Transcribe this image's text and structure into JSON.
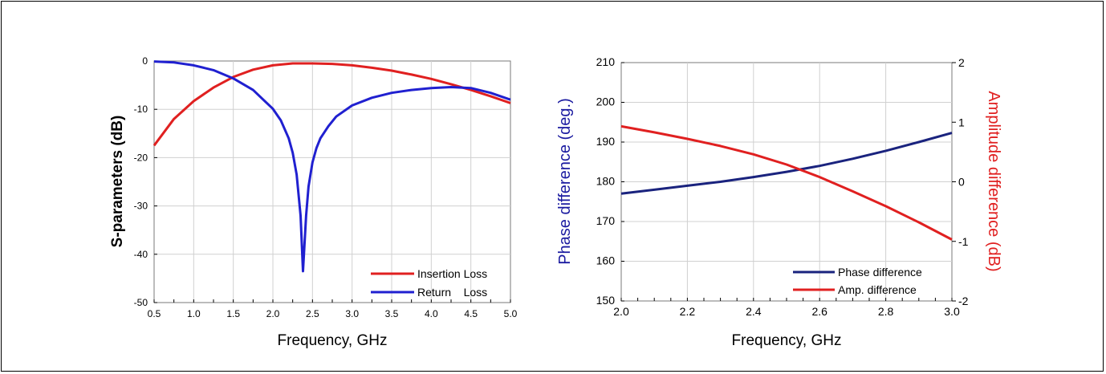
{
  "chart_data": [
    {
      "type": "line",
      "ylabel": "S-parameters (dB)",
      "xlabel": "Frequency, GHz",
      "xlim": [
        0.5,
        5.0
      ],
      "ylim": [
        -50,
        0
      ],
      "xticks": [
        "0.5",
        "1.0",
        "1.5",
        "2.0",
        "2.5",
        "3.0",
        "3.5",
        "4.0",
        "4.5",
        "5.0"
      ],
      "yticks": [
        "0",
        "-10",
        "-20",
        "-30",
        "-40",
        "-50"
      ],
      "grid": true,
      "legend_position": "bottom-right",
      "series": [
        {
          "name": "Insertion Loss",
          "color": "#e02020",
          "x": [
            0.5,
            0.75,
            1.0,
            1.25,
            1.5,
            1.75,
            2.0,
            2.25,
            2.5,
            2.75,
            3.0,
            3.25,
            3.5,
            3.75,
            4.0,
            4.25,
            4.5,
            4.75,
            5.0
          ],
          "y": [
            -17.5,
            -12.0,
            -8.3,
            -5.5,
            -3.3,
            -1.8,
            -0.9,
            -0.5,
            -0.5,
            -0.6,
            -0.9,
            -1.4,
            -2.0,
            -2.8,
            -3.7,
            -4.8,
            -6.0,
            -7.3,
            -8.7
          ]
        },
        {
          "name": "Return    Loss",
          "color": "#2020d0",
          "x": [
            0.5,
            0.75,
            1.0,
            1.25,
            1.5,
            1.75,
            2.0,
            2.1,
            2.2,
            2.25,
            2.3,
            2.35,
            2.38,
            2.42,
            2.45,
            2.5,
            2.55,
            2.6,
            2.7,
            2.8,
            3.0,
            3.25,
            3.5,
            3.75,
            4.0,
            4.25,
            4.5,
            4.75,
            5.0
          ],
          "y": [
            -0.1,
            -0.3,
            -0.9,
            -1.9,
            -3.6,
            -6.0,
            -9.9,
            -12.3,
            -16.0,
            -19.0,
            -23.5,
            -32.0,
            -43.5,
            -32.0,
            -26.0,
            -21.0,
            -18.0,
            -16.0,
            -13.5,
            -11.5,
            -9.2,
            -7.6,
            -6.6,
            -6.0,
            -5.6,
            -5.4,
            -5.6,
            -6.6,
            -8.0
          ]
        }
      ]
    },
    {
      "type": "line",
      "ylabel": "Phase difference (deg.)",
      "y2label": "Amplitude difference (dB)",
      "xlabel": "Frequency, GHz",
      "xlim": [
        2.0,
        3.0
      ],
      "ylim": [
        150,
        210
      ],
      "y2lim": [
        -2,
        2
      ],
      "xticks": [
        "2.0",
        "2.2",
        "2.4",
        "2.6",
        "2.8",
        "3.0"
      ],
      "yticks": [
        "150",
        "160",
        "170",
        "180",
        "190",
        "200",
        "210"
      ],
      "y2ticks": [
        "-2",
        "-1",
        "0",
        "1",
        "2"
      ],
      "grid": true,
      "legend_position": "bottom-right",
      "series": [
        {
          "name": "Phase difference",
          "color": "#1a237e",
          "axis": "left",
          "x": [
            2.0,
            2.1,
            2.2,
            2.3,
            2.4,
            2.5,
            2.6,
            2.7,
            2.8,
            2.9,
            3.0
          ],
          "y": [
            177.0,
            178.0,
            179.0,
            180.0,
            181.2,
            182.5,
            184.0,
            185.8,
            187.8,
            190.0,
            192.3
          ]
        },
        {
          "name": "Amp. difference",
          "color": "#e02020",
          "axis": "right",
          "x": [
            2.0,
            2.1,
            2.2,
            2.3,
            2.4,
            2.5,
            2.6,
            2.7,
            2.8,
            2.9,
            3.0
          ],
          "y": [
            0.93,
            0.83,
            0.72,
            0.6,
            0.46,
            0.29,
            0.08,
            -0.16,
            -0.41,
            -0.68,
            -0.97
          ]
        }
      ]
    }
  ]
}
